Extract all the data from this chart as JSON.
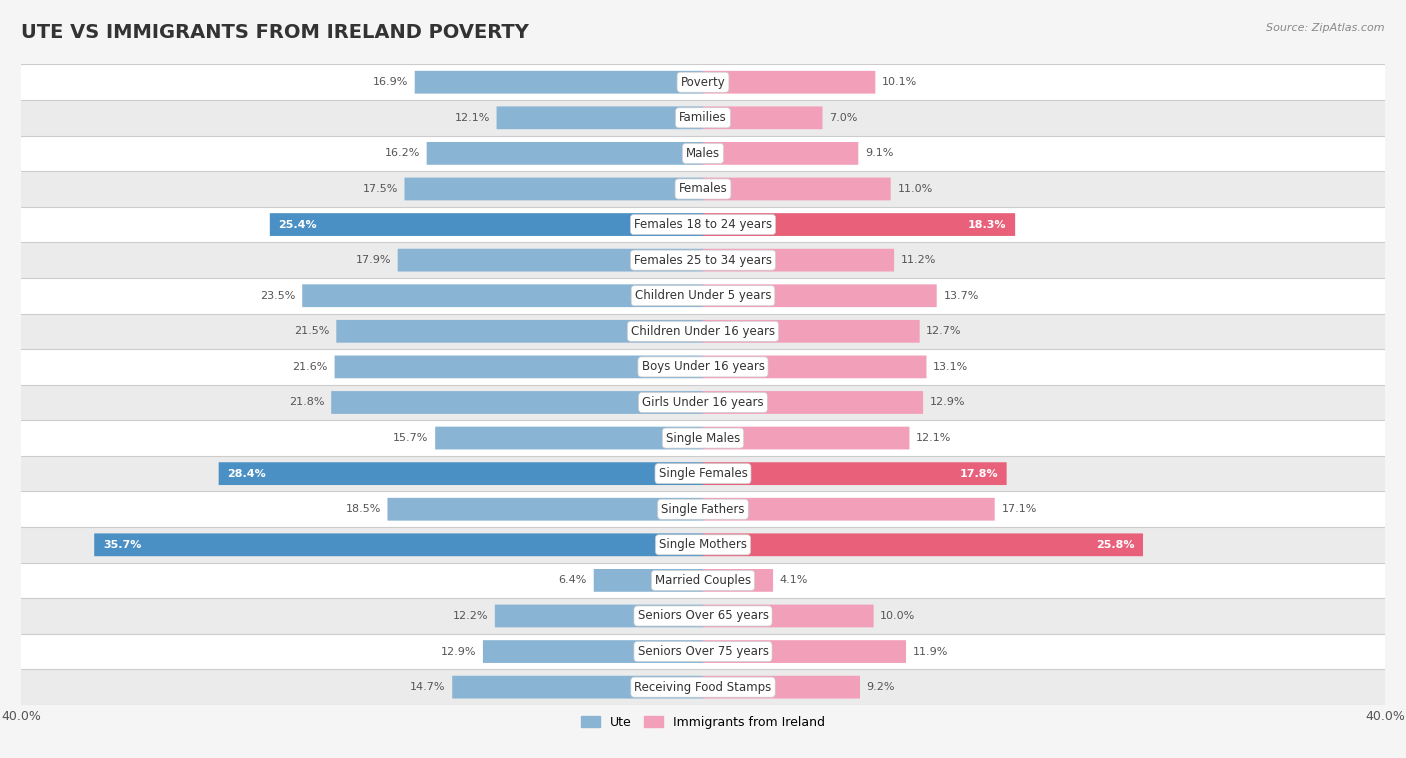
{
  "title": "UTE VS IMMIGRANTS FROM IRELAND POVERTY",
  "source": "Source: ZipAtlas.com",
  "categories": [
    "Poverty",
    "Families",
    "Males",
    "Females",
    "Females 18 to 24 years",
    "Females 25 to 34 years",
    "Children Under 5 years",
    "Children Under 16 years",
    "Boys Under 16 years",
    "Girls Under 16 years",
    "Single Males",
    "Single Females",
    "Single Fathers",
    "Single Mothers",
    "Married Couples",
    "Seniors Over 65 years",
    "Seniors Over 75 years",
    "Receiving Food Stamps"
  ],
  "ute_values": [
    16.9,
    12.1,
    16.2,
    17.5,
    25.4,
    17.9,
    23.5,
    21.5,
    21.6,
    21.8,
    15.7,
    28.4,
    18.5,
    35.7,
    6.4,
    12.2,
    12.9,
    14.7
  ],
  "ireland_values": [
    10.1,
    7.0,
    9.1,
    11.0,
    18.3,
    11.2,
    13.7,
    12.7,
    13.1,
    12.9,
    12.1,
    17.8,
    17.1,
    25.8,
    4.1,
    10.0,
    11.9,
    9.2
  ],
  "ute_color": "#8ab4d4",
  "ireland_color": "#f2a0ba",
  "ute_highlight_color": "#4a90c4",
  "ireland_highlight_color": "#e8607a",
  "highlight_rows": [
    4,
    11,
    13
  ],
  "bar_height": 0.62,
  "xlim": 40.0,
  "background_color": "#f5f5f5",
  "row_colors_even": "#ffffff",
  "row_colors_odd": "#ebebeb",
  "separator_color": "#cccccc",
  "title_fontsize": 14,
  "label_fontsize": 8.5,
  "value_fontsize": 8.0,
  "legend_label_ute": "Ute",
  "legend_label_ireland": "Immigrants from Ireland"
}
